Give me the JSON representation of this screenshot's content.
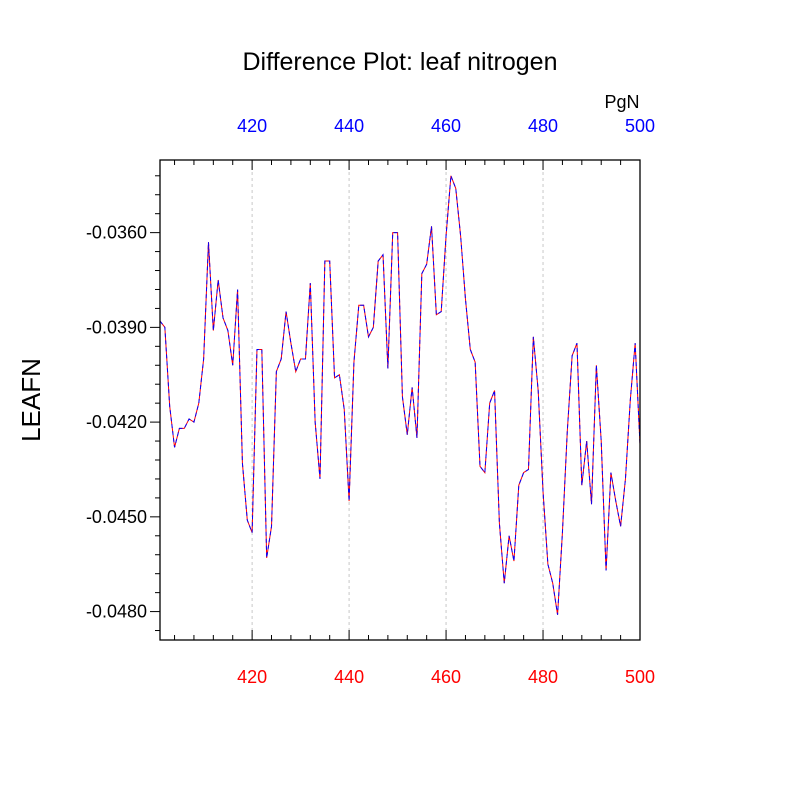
{
  "chart_data": {
    "type": "line",
    "title": "Difference Plot: leaf nitrogen",
    "ylabel": "LEAFN",
    "units": "PgN",
    "xlim": [
      401,
      500
    ],
    "ylim": [
      -0.0489,
      -0.0337
    ],
    "x_ticks": [
      420,
      440,
      460,
      480,
      500
    ],
    "x_tick_labels": [
      "420",
      "440",
      "460",
      "480",
      "500"
    ],
    "y_ticks": [
      -0.036,
      -0.039,
      -0.042,
      -0.045,
      -0.048
    ],
    "y_tick_labels": [
      "-0.0360",
      "-0.0390",
      "-0.0420",
      "-0.0450",
      "-0.0480"
    ],
    "grid": "vertical dashed at major x ticks",
    "colors": {
      "bottom_axis": "#ff0000",
      "top_axis": "#0000ff",
      "line_a": "#ff0000",
      "line_b": "#0000ff"
    },
    "series": [
      {
        "x_start": 401,
        "x_step": 1,
        "values": [
          -0.0388,
          -0.039,
          -0.0415,
          -0.0428,
          -0.0422,
          -0.0422,
          -0.0419,
          -0.042,
          -0.0414,
          -0.04,
          -0.0363,
          -0.0391,
          -0.0375,
          -0.0387,
          -0.0391,
          -0.0402,
          -0.0378,
          -0.0433,
          -0.0451,
          -0.0455,
          -0.0397,
          -0.0397,
          -0.0463,
          -0.0453,
          -0.0404,
          -0.04,
          -0.0385,
          -0.0395,
          -0.0404,
          -0.04,
          -0.04,
          -0.0376,
          -0.042,
          -0.0438,
          -0.0369,
          -0.0369,
          -0.0406,
          -0.0405,
          -0.0416,
          -0.0445,
          -0.0401,
          -0.0383,
          -0.0383,
          -0.0393,
          -0.039,
          -0.0369,
          -0.0367,
          -0.0403,
          -0.036,
          -0.036,
          -0.0412,
          -0.0424,
          -0.0409,
          -0.0425,
          -0.0373,
          -0.037,
          -0.0358,
          -0.0386,
          -0.0385,
          -0.0361,
          -0.0342,
          -0.0346,
          -0.0361,
          -0.0381,
          -0.0397,
          -0.0401,
          -0.0434,
          -0.0436,
          -0.0414,
          -0.041,
          -0.0452,
          -0.0471,
          -0.0456,
          -0.0464,
          -0.044,
          -0.0436,
          -0.0435,
          -0.0393,
          -0.041,
          -0.0442,
          -0.0465,
          -0.0471,
          -0.0481,
          -0.0455,
          -0.0423,
          -0.0399,
          -0.0395,
          -0.044,
          -0.0426,
          -0.0446,
          -0.0402,
          -0.0426,
          -0.0467,
          -0.0436,
          -0.0445,
          -0.0453,
          -0.0438,
          -0.0413,
          -0.0395,
          -0.0427
        ]
      }
    ]
  }
}
